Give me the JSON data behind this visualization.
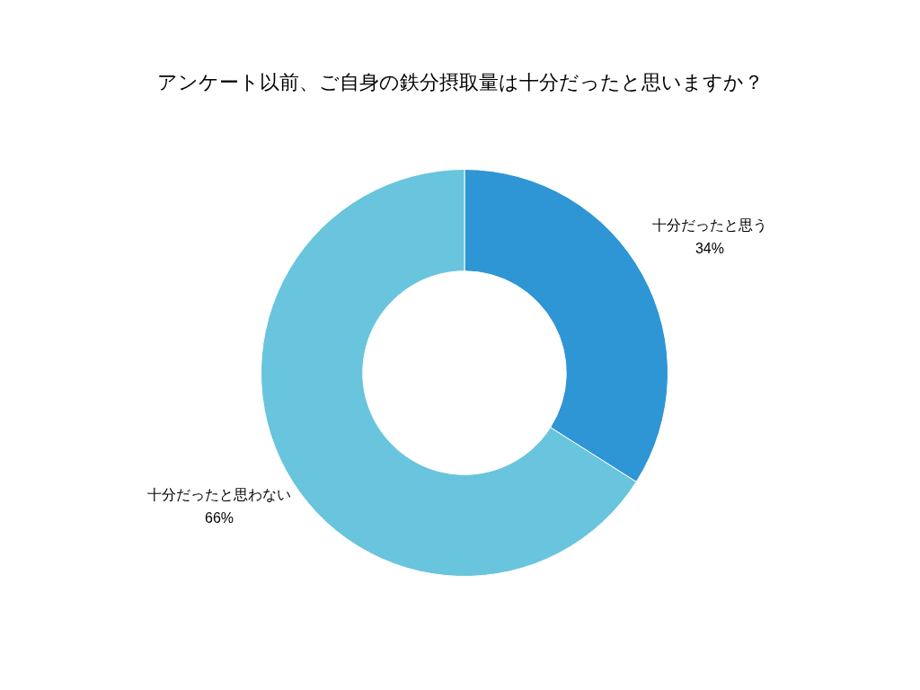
{
  "chart_data": {
    "type": "donut",
    "title": "アンケート以前、ご自身の鉄分摂取量は十分だったと思いますか？",
    "categories": [
      "十分だったと思う",
      "十分だったと思わない"
    ],
    "values": [
      34,
      66
    ],
    "colors": [
      "#2e96d4",
      "#69c4dd"
    ],
    "value_labels": [
      "34%",
      "66%"
    ],
    "legend": false
  }
}
